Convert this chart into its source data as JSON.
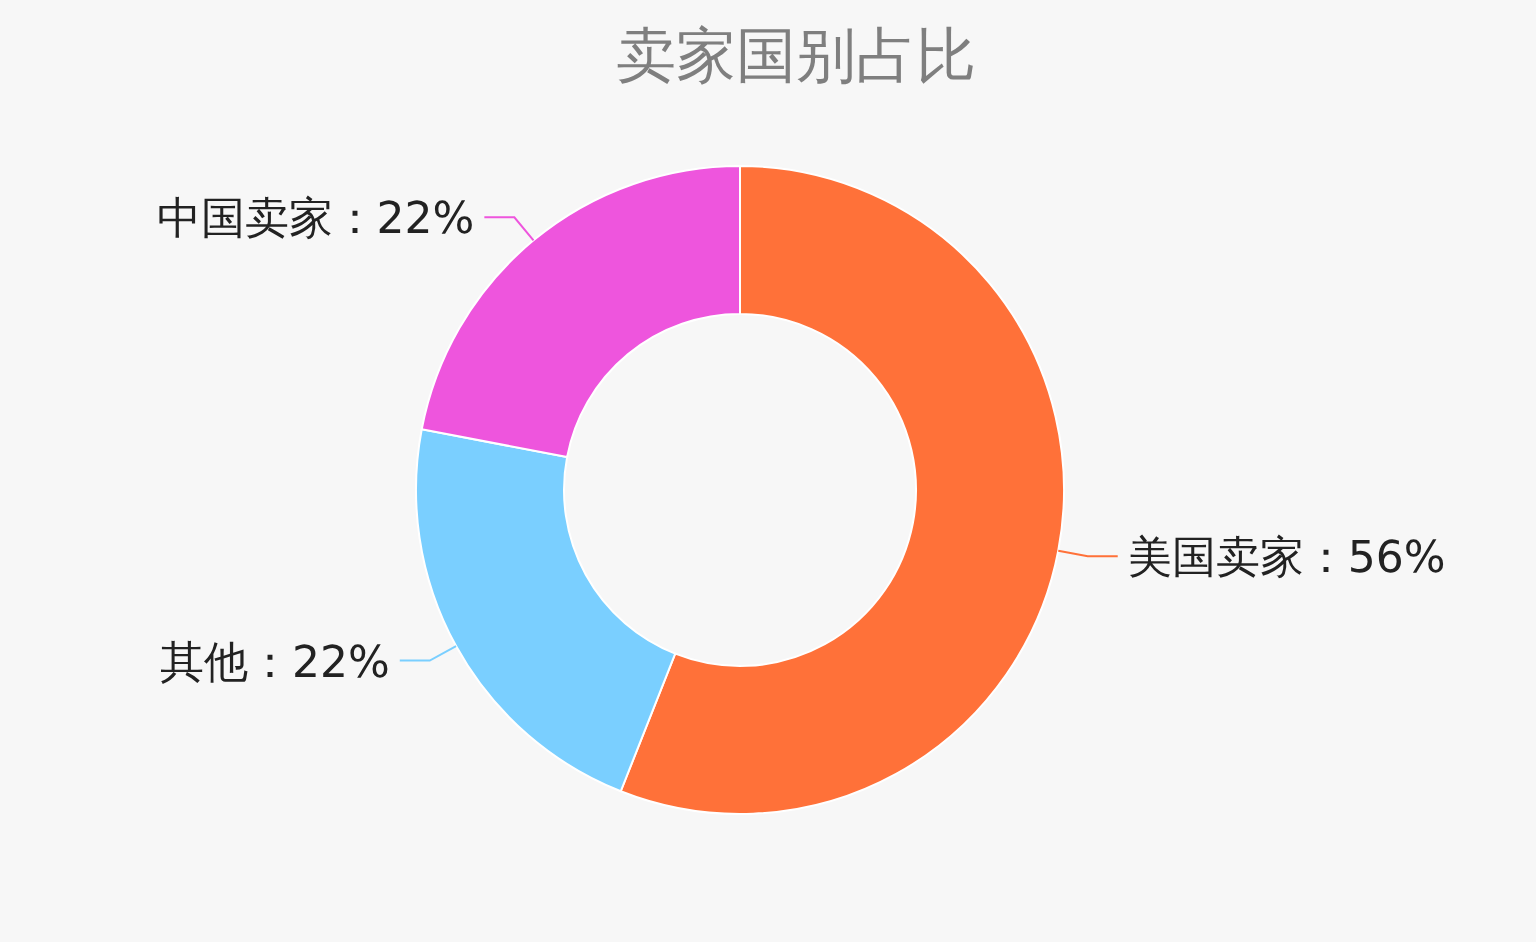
{
  "chart_data": {
    "type": "donut",
    "title": "卖家国别占比",
    "categories": [
      "美国卖家",
      "其他",
      "中国卖家"
    ],
    "values": [
      56,
      22,
      22
    ],
    "value_labels": [
      "56%",
      "22%",
      "22%"
    ],
    "colors": [
      "#ff7139",
      "#7acfff",
      "#ee55dd"
    ]
  }
}
